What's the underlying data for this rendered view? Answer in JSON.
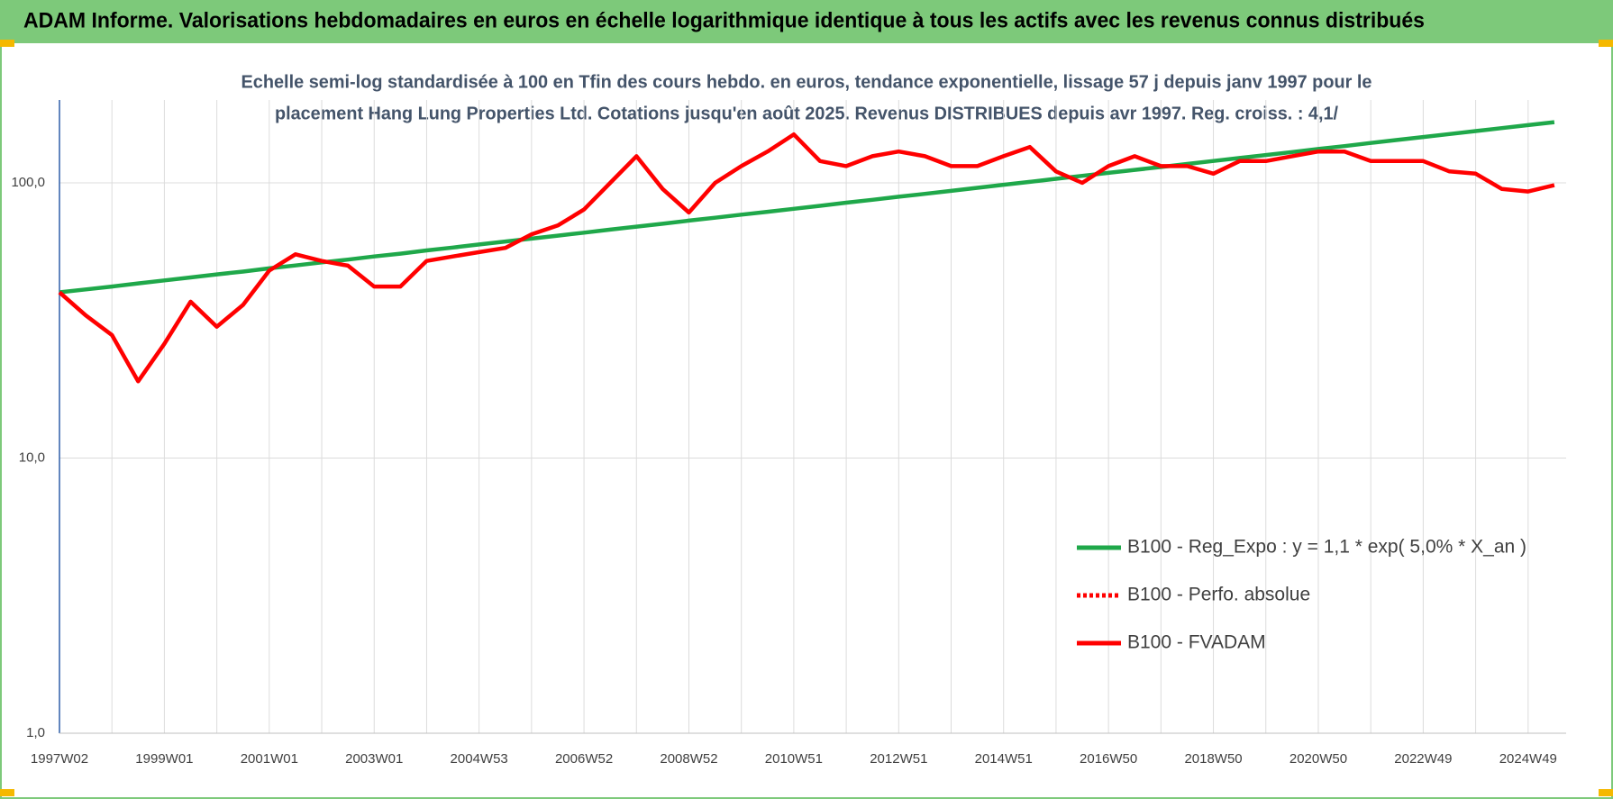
{
  "header": "ADAM Informe. Valorisations hebdomadaires en euros en échelle logarithmique identique à tous les actifs avec les revenus connus distribués",
  "chart_data": {
    "type": "line",
    "title": [
      "Echelle semi-log standardisée à 100 en Tfin des cours hebdo. en euros, tendance exponentielle, lissage 57 j depuis janv 1997 pour le",
      "placement Hang Lung Properties Ltd. Cotations jusqu'en août 2025. Revenus DISTRIBUES depuis avr 1997. Reg. croiss. : 4,1/"
    ],
    "categories": [
      "1997W02",
      null,
      null,
      null,
      "1999W01",
      null,
      null,
      null,
      "2001W01",
      null,
      null,
      null,
      "2003W01",
      null,
      null,
      null,
      "2004W53",
      null,
      null,
      null,
      "2006W52",
      null,
      null,
      null,
      "2008W52",
      null,
      null,
      null,
      "2010W51",
      null,
      null,
      null,
      "2012W51",
      null,
      null,
      null,
      "2014W51",
      null,
      null,
      null,
      "2016W50",
      null,
      null,
      null,
      "2018W50",
      null,
      null,
      null,
      "2020W50",
      null,
      null,
      null,
      "2022W49",
      null,
      null,
      null,
      "2024W49",
      null
    ],
    "series": [
      {
        "name": "B100 - Reg_Expo : y = 1,1 * exp( 5,0% *  X_an )",
        "color": "#1fa84a",
        "style": "solid",
        "values": [
          40.0,
          41.0,
          42.0,
          43.1,
          44.2,
          45.3,
          46.5,
          47.6,
          48.9,
          50.1,
          51.4,
          52.6,
          54.0,
          55.3,
          56.8,
          58.2,
          59.7,
          61.2,
          62.7,
          64.3,
          65.9,
          67.6,
          69.3,
          71.0,
          72.9,
          74.7,
          76.6,
          78.5,
          80.5,
          82.5,
          84.7,
          86.8,
          89.0,
          91.2,
          93.5,
          95.9,
          98.4,
          100.8,
          103.4,
          106.0,
          108.7,
          111.4,
          114.2,
          117.1,
          120.1,
          123.1,
          126.2,
          129.4,
          132.7,
          136.0,
          139.6,
          143.1,
          146.7,
          150.4,
          154.2,
          158.1,
          162.1,
          166.2
        ]
      },
      {
        "name": "B100 - Perfo. absolue",
        "color": "#ff0000",
        "style": "dotted",
        "values": [
          null,
          null,
          null,
          null,
          null,
          null,
          null,
          null,
          null,
          null,
          null,
          null,
          null,
          null,
          null,
          null,
          null,
          null,
          null,
          null,
          null,
          null,
          null,
          null,
          null,
          null,
          null,
          null,
          null,
          null,
          null,
          null,
          null,
          null,
          null,
          null,
          null,
          null,
          null,
          null,
          null,
          null,
          null,
          null,
          null,
          null,
          null,
          null,
          null,
          null,
          null,
          null,
          null,
          null,
          null,
          null,
          null,
          null
        ]
      },
      {
        "name": "B100 - FVADAM",
        "color": "#ff0000",
        "style": "solid",
        "values": [
          40,
          33,
          28,
          19,
          26,
          37,
          30,
          36,
          48,
          55,
          52,
          50,
          42,
          42,
          52,
          54,
          56,
          58,
          65,
          70,
          80,
          100,
          125,
          95,
          78,
          100,
          115,
          130,
          150,
          120,
          115,
          125,
          130,
          125,
          115,
          115,
          125,
          135,
          110,
          100,
          115,
          125,
          115,
          115,
          108,
          120,
          120,
          125,
          130,
          130,
          120,
          120,
          120,
          110,
          108,
          95,
          93,
          98
        ]
      }
    ],
    "log_scale": true,
    "ylim": [
      1,
      200
    ],
    "yticks": [
      {
        "value": 1,
        "label": "1,0"
      },
      {
        "value": 10,
        "label": "10,0"
      },
      {
        "value": 100,
        "label": "100,0"
      }
    ],
    "grid": true,
    "legend": "bottom-right"
  }
}
